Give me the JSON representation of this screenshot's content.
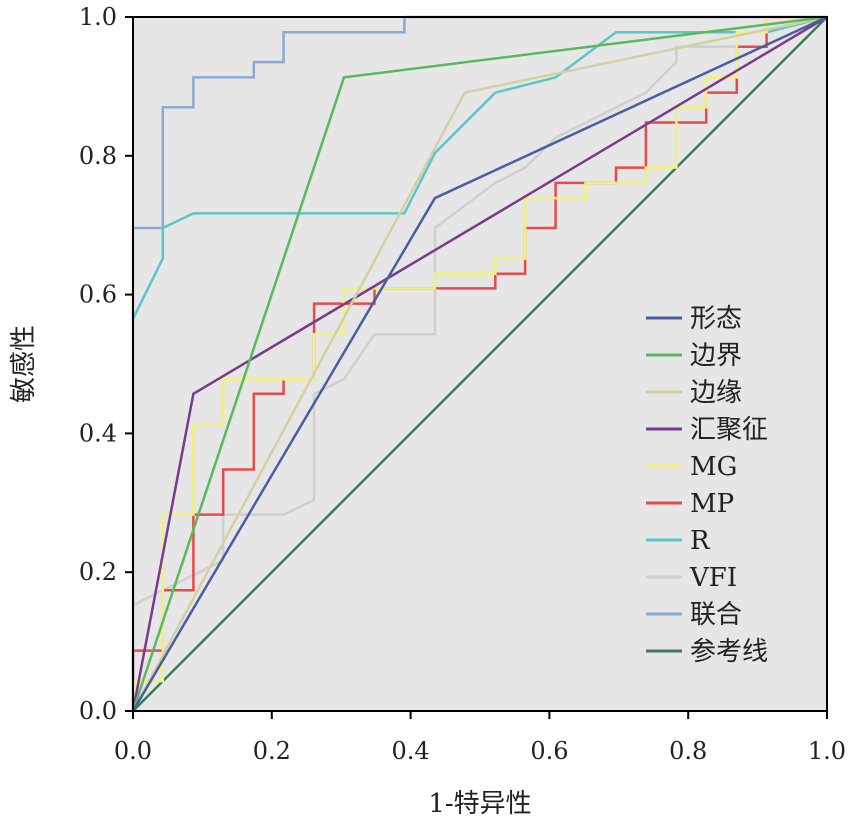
{
  "chart_data": {
    "type": "line",
    "xlabel": "1-特异性",
    "ylabel": "敏感性",
    "xlim": [
      0,
      1
    ],
    "ylim": [
      0,
      1
    ],
    "xticks": [
      "0.0",
      "0.2",
      "0.4",
      "0.6",
      "0.8",
      "1.0"
    ],
    "yticks": [
      "0.0",
      "0.2",
      "0.4",
      "0.6",
      "0.8",
      "1.0"
    ],
    "grid": false,
    "background": "#e6e6e6",
    "legend_position": "right",
    "series": [
      {
        "name": "形态",
        "color": "#4a5da3",
        "step": false,
        "points": [
          [
            0,
            0
          ],
          [
            0.435,
            0.739
          ],
          [
            1,
            1
          ]
        ]
      },
      {
        "name": "边界",
        "color": "#5cb85c",
        "step": false,
        "points": [
          [
            0,
            0
          ],
          [
            0.304,
            0.913
          ],
          [
            1,
            1
          ]
        ]
      },
      {
        "name": "边缘",
        "color": "#d4d0a4",
        "step": false,
        "points": [
          [
            0,
            0
          ],
          [
            0.478,
            0.891
          ],
          [
            1,
            1
          ]
        ]
      },
      {
        "name": "汇聚征",
        "color": "#7b3b8c",
        "step": false,
        "points": [
          [
            0,
            0
          ],
          [
            0.087,
            0.457
          ],
          [
            1,
            1
          ]
        ]
      },
      {
        "name": "MG",
        "color": "#f2f27a",
        "step": true,
        "points": [
          [
            0,
            0
          ],
          [
            0,
            0.043
          ],
          [
            0.043,
            0.043
          ],
          [
            0.043,
            0.283
          ],
          [
            0.087,
            0.283
          ],
          [
            0.087,
            0.413
          ],
          [
            0.13,
            0.413
          ],
          [
            0.13,
            0.478
          ],
          [
            0.217,
            0.478
          ],
          [
            0.261,
            0.478
          ],
          [
            0.261,
            0.543
          ],
          [
            0.304,
            0.543
          ],
          [
            0.304,
            0.609
          ],
          [
            0.435,
            0.609
          ],
          [
            0.435,
            0.63
          ],
          [
            0.522,
            0.63
          ],
          [
            0.522,
            0.652
          ],
          [
            0.565,
            0.652
          ],
          [
            0.565,
            0.739
          ],
          [
            0.652,
            0.739
          ],
          [
            0.652,
            0.761
          ],
          [
            0.739,
            0.761
          ],
          [
            0.739,
            0.783
          ],
          [
            0.783,
            0.783
          ],
          [
            0.783,
            0.87
          ],
          [
            0.826,
            0.87
          ],
          [
            0.826,
            0.913
          ],
          [
            0.87,
            0.913
          ],
          [
            0.87,
            0.978
          ],
          [
            0.913,
            0.978
          ],
          [
            0.913,
            1
          ],
          [
            1,
            1
          ]
        ]
      },
      {
        "name": "MP",
        "color": "#e84a4a",
        "step": true,
        "points": [
          [
            0,
            0
          ],
          [
            0,
            0.087
          ],
          [
            0.043,
            0.087
          ],
          [
            0.043,
            0.174
          ],
          [
            0.087,
            0.174
          ],
          [
            0.087,
            0.283
          ],
          [
            0.13,
            0.283
          ],
          [
            0.13,
            0.348
          ],
          [
            0.174,
            0.348
          ],
          [
            0.174,
            0.457
          ],
          [
            0.217,
            0.457
          ],
          [
            0.217,
            0.478
          ],
          [
            0.261,
            0.478
          ],
          [
            0.261,
            0.587
          ],
          [
            0.348,
            0.587
          ],
          [
            0.348,
            0.609
          ],
          [
            0.522,
            0.609
          ],
          [
            0.522,
            0.63
          ],
          [
            0.565,
            0.63
          ],
          [
            0.565,
            0.696
          ],
          [
            0.609,
            0.696
          ],
          [
            0.609,
            0.761
          ],
          [
            0.696,
            0.761
          ],
          [
            0.696,
            0.783
          ],
          [
            0.739,
            0.783
          ],
          [
            0.739,
            0.848
          ],
          [
            0.826,
            0.848
          ],
          [
            0.826,
            0.891
          ],
          [
            0.87,
            0.891
          ],
          [
            0.87,
            0.957
          ],
          [
            0.913,
            0.957
          ],
          [
            0.913,
            1
          ],
          [
            1,
            1
          ]
        ]
      },
      {
        "name": "R",
        "color": "#5cc6c6",
        "step": false,
        "points": [
          [
            0,
            0.565
          ],
          [
            0.043,
            0.652
          ],
          [
            0.043,
            0.696
          ],
          [
            0.087,
            0.717
          ],
          [
            0.391,
            0.717
          ],
          [
            0.435,
            0.804
          ],
          [
            0.522,
            0.891
          ],
          [
            0.609,
            0.913
          ],
          [
            0.696,
            0.978
          ],
          [
            0.913,
            0.978
          ],
          [
            1,
            1
          ]
        ]
      },
      {
        "name": "VFI",
        "color": "#cfcfcf",
        "step": false,
        "points": [
          [
            0,
            0.152
          ],
          [
            0.043,
            0.174
          ],
          [
            0.13,
            0.217
          ],
          [
            0.13,
            0.283
          ],
          [
            0.217,
            0.283
          ],
          [
            0.261,
            0.304
          ],
          [
            0.261,
            0.457
          ],
          [
            0.304,
            0.478
          ],
          [
            0.348,
            0.543
          ],
          [
            0.435,
            0.543
          ],
          [
            0.435,
            0.696
          ],
          [
            0.522,
            0.761
          ],
          [
            0.565,
            0.783
          ],
          [
            0.609,
            0.826
          ],
          [
            0.739,
            0.891
          ],
          [
            0.783,
            0.935
          ],
          [
            0.783,
            0.957
          ],
          [
            0.87,
            0.957
          ],
          [
            0.87,
            0.978
          ],
          [
            0.913,
            0.978
          ],
          [
            0.913,
            1
          ],
          [
            1,
            1
          ]
        ]
      },
      {
        "name": "联合",
        "color": "#8aaad6",
        "step": false,
        "points": [
          [
            0,
            0
          ],
          [
            0,
            0.696
          ],
          [
            0.043,
            0.696
          ],
          [
            0.043,
            0.87
          ],
          [
            0.087,
            0.87
          ],
          [
            0.087,
            0.913
          ],
          [
            0.174,
            0.913
          ],
          [
            0.174,
            0.935
          ],
          [
            0.217,
            0.935
          ],
          [
            0.217,
            0.978
          ],
          [
            0.391,
            0.978
          ],
          [
            0.391,
            1
          ],
          [
            1,
            1
          ]
        ]
      },
      {
        "name": "参考线",
        "color": "#3d7a5a",
        "step": false,
        "points": [
          [
            0,
            0
          ],
          [
            1,
            1
          ]
        ]
      }
    ]
  }
}
